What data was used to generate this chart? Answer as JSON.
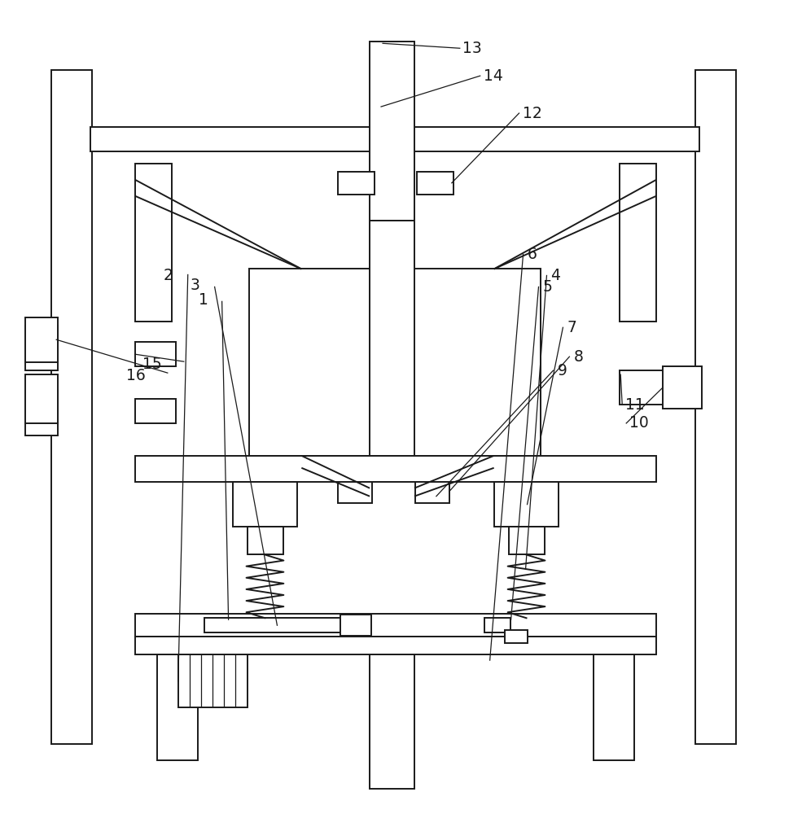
{
  "bg_color": "#ffffff",
  "line_color": "#1a1a1a",
  "lw": 1.4,
  "lw_thin": 0.9,
  "fig_width": 9.74,
  "fig_height": 10.0
}
